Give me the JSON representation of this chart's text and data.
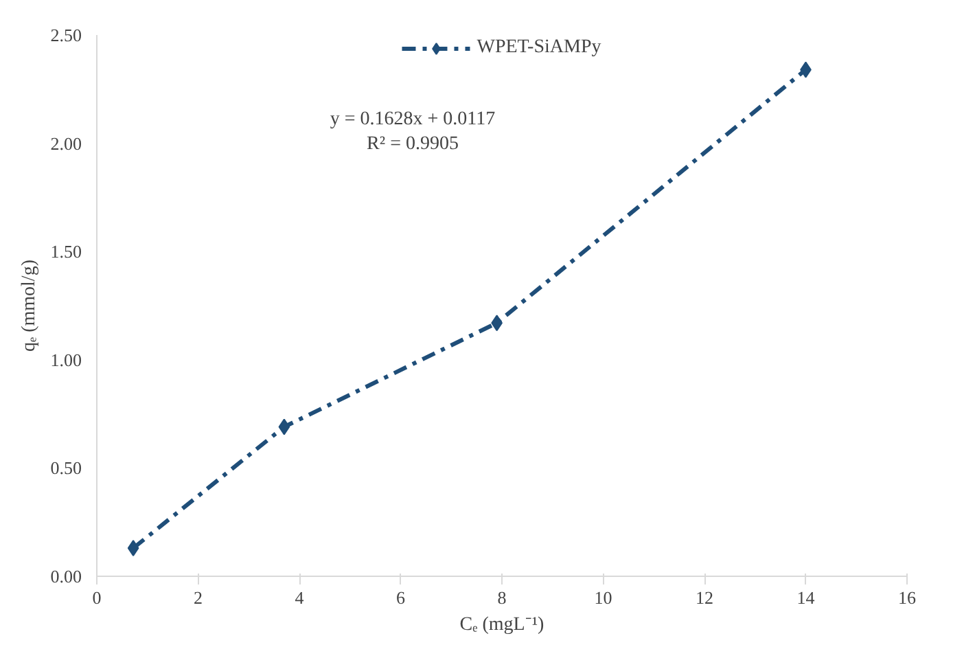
{
  "chart_data": {
    "type": "line",
    "xlabel": "Cₑ (mgL⁻¹)",
    "ylabel": "qₑ (mmol/g)",
    "x": [
      0.72,
      3.7,
      7.9,
      14.0
    ],
    "series": [
      {
        "name": "WPET-SiAMPy",
        "color": "#1f4e79",
        "values": [
          0.13,
          0.69,
          1.17,
          2.34
        ]
      }
    ],
    "xlim": [
      0,
      16
    ],
    "xticks": [
      0,
      2,
      4,
      6,
      8,
      10,
      12,
      14,
      16
    ],
    "ylim": [
      0,
      2.5
    ],
    "yticks": [
      {
        "value": 0,
        "label": "0.00"
      },
      {
        "value": 0.5,
        "label": "0.50"
      },
      {
        "value": 1.0,
        "label": "1.00"
      },
      {
        "value": 1.5,
        "label": "1.50"
      },
      {
        "value": 2.0,
        "label": "2.00"
      },
      {
        "value": 2.5,
        "label": "2.50"
      }
    ],
    "annotations": [
      "y = 0.1628x + 0.0117",
      "R² = 0.9905"
    ],
    "legend": "top",
    "grid": false,
    "marker": "diamond",
    "line_style": "dashed"
  }
}
